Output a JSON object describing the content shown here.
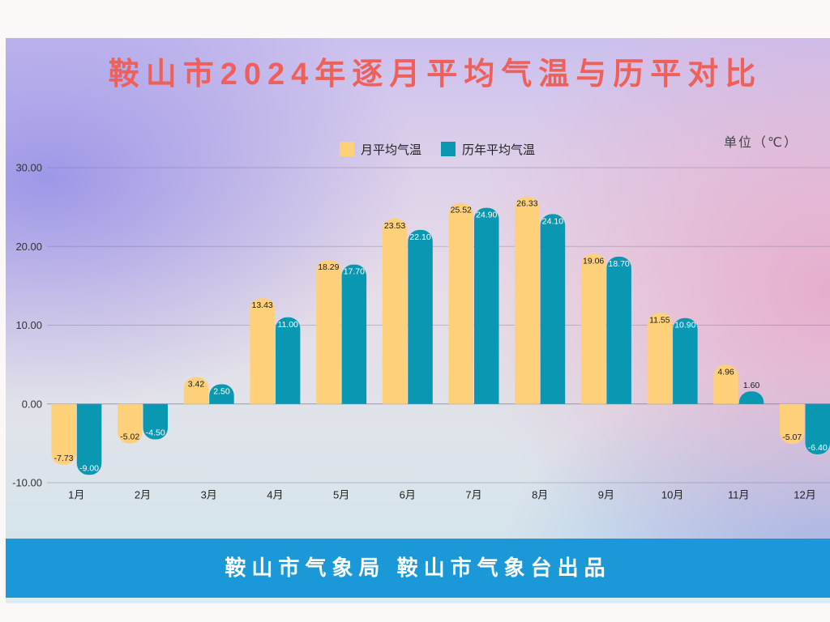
{
  "colors": {
    "title": "#f0605a",
    "banner": "#1b98d7"
  },
  "footer": "鞍山市气象局 鞍山市气象台出品",
  "chart_data": {
    "type": "bar",
    "title": "鞍山市2024年逐月平均气温与历平对比",
    "unit": "单位（℃）",
    "categories": [
      "1月",
      "2月",
      "3月",
      "4月",
      "5月",
      "6月",
      "7月",
      "8月",
      "9月",
      "10月",
      "11月",
      "12月"
    ],
    "series": [
      {
        "name": "月平均气温",
        "color": "#ffd07a",
        "values": [
          -7.73,
          -5.02,
          3.42,
          13.43,
          18.29,
          23.53,
          25.52,
          26.33,
          19.06,
          11.55,
          4.96,
          -5.07
        ]
      },
      {
        "name": "历年平均气温",
        "color": "#0a97b2",
        "values": [
          -9.0,
          -4.5,
          2.5,
          11.0,
          17.7,
          22.1,
          24.9,
          24.1,
          18.7,
          10.9,
          1.6,
          -6.4
        ]
      }
    ],
    "yticks": [
      30,
      20,
      10,
      0,
      -10
    ],
    "ylim": [
      -10,
      30
    ],
    "grid": true,
    "legend": "top-center",
    "value_labels": true
  }
}
